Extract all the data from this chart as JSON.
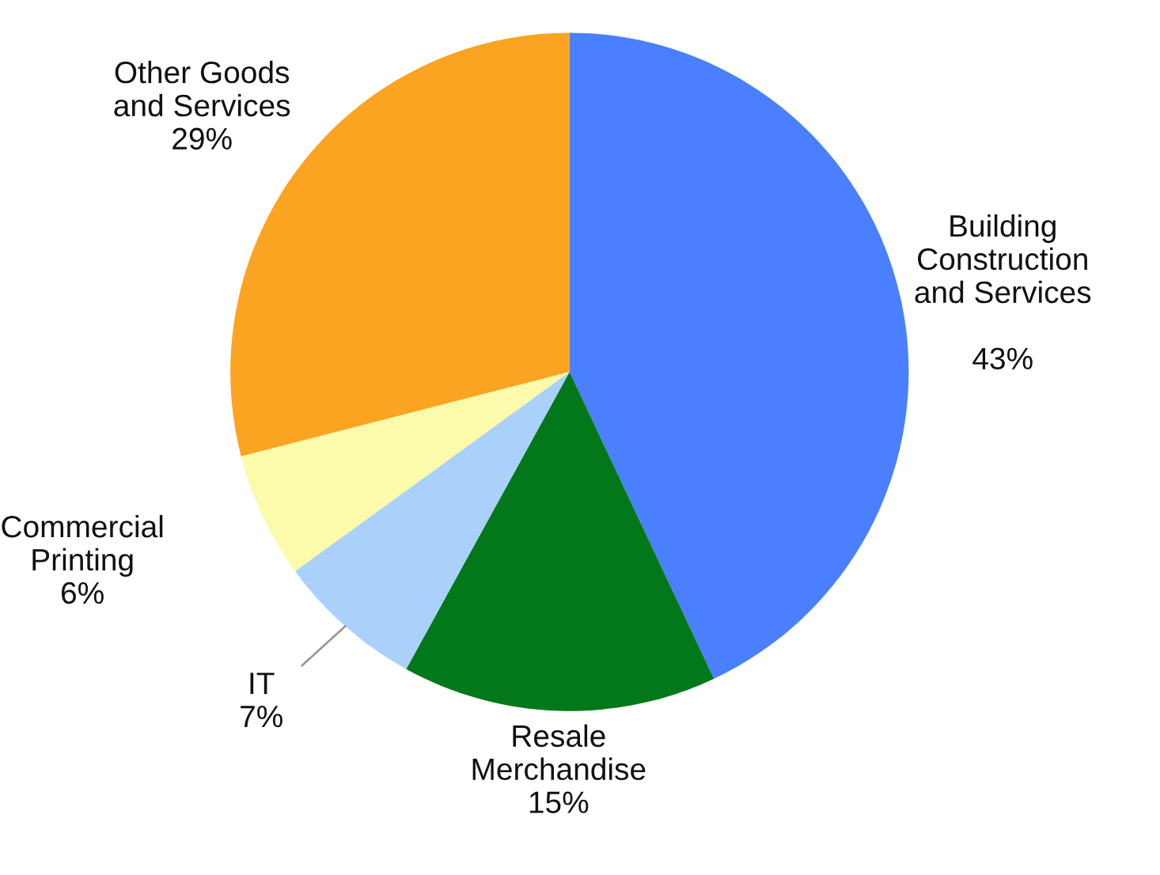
{
  "chart_data": {
    "type": "pie",
    "categories": [
      "Building\nConstruction\nand Services",
      "Resale\nMerchandise",
      "IT",
      "Commercial\nPrinting",
      "Other Goods\nand Services"
    ],
    "values": [
      43,
      15,
      7,
      6,
      29
    ],
    "value_labels": [
      "43%",
      "15%",
      "7%",
      "6%",
      "29%"
    ],
    "colors": [
      "#4a7fff",
      "#02781b",
      "#a9d1fb",
      "#fbfbab",
      "#fba421"
    ]
  }
}
